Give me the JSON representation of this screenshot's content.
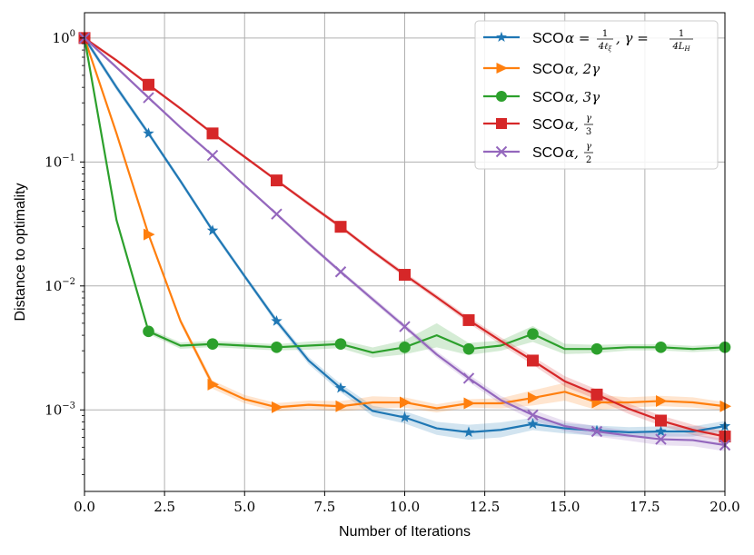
{
  "chart_data": {
    "type": "line",
    "xlabel": "Number of Iterations",
    "ylabel": "Distance to optimality",
    "yscale": "log",
    "xlim": [
      0,
      20
    ],
    "ylim": [
      0.00022,
      1.6
    ],
    "grid": true,
    "legend_position": "top-right",
    "x_ticks": [
      "0.0",
      "2.5",
      "5.0",
      "7.5",
      "10.0",
      "12.5",
      "15.0",
      "17.5",
      "20.0"
    ],
    "x_tick_values": [
      0,
      2.5,
      5,
      7.5,
      10,
      12.5,
      15,
      17.5,
      20
    ],
    "y_tick_values": [
      1,
      0.1,
      0.01,
      0.001
    ],
    "y_ticks": [
      {
        "base": "10",
        "exp": "0"
      },
      {
        "base": "10",
        "exp": "−1"
      },
      {
        "base": "10",
        "exp": "−2"
      },
      {
        "base": "10",
        "exp": "−3"
      }
    ],
    "x": [
      0,
      1,
      2,
      3,
      4,
      5,
      6,
      7,
      8,
      9,
      10,
      11,
      12,
      13,
      14,
      15,
      16,
      17,
      18,
      19,
      20
    ],
    "series": [
      {
        "name": "SCO α = 1/(4ℓξ), γ = 1/(4LH)",
        "legend_prefix": "SCO",
        "color": "#1f77b4",
        "marker": "star",
        "values": [
          1.0,
          0.4,
          0.17,
          0.07,
          0.028,
          0.012,
          0.0052,
          0.0025,
          0.0015,
          0.00098,
          0.00087,
          0.00071,
          0.00066,
          0.00069,
          0.00077,
          0.00071,
          0.00068,
          0.00066,
          0.00067,
          0.00067,
          0.00074
        ],
        "band": [
          0.06,
          0.06,
          0.05,
          0.05,
          0.05,
          0.05,
          0.06,
          0.07,
          0.08,
          0.1,
          0.12,
          0.13,
          0.15,
          0.15,
          0.12,
          0.1,
          0.1,
          0.1,
          0.1,
          0.1,
          0.1
        ]
      },
      {
        "name": "SCO α, 2γ",
        "legend_prefix": "SCO",
        "color": "#ff7f0e",
        "marker": "triangle-right",
        "values": [
          1.0,
          0.17,
          0.026,
          0.0052,
          0.0016,
          0.00122,
          0.00105,
          0.0011,
          0.00107,
          0.00115,
          0.00115,
          0.00103,
          0.00113,
          0.00113,
          0.00125,
          0.0014,
          0.00115,
          0.00115,
          0.00118,
          0.00115,
          0.00107
        ],
        "band": [
          0.05,
          0.05,
          0.05,
          0.06,
          0.08,
          0.08,
          0.08,
          0.08,
          0.1,
          0.12,
          0.1,
          0.08,
          0.08,
          0.1,
          0.15,
          0.18,
          0.15,
          0.1,
          0.1,
          0.1,
          0.08
        ]
      },
      {
        "name": "SCO α, 3γ",
        "legend_prefix": "SCO",
        "color": "#2ca02c",
        "marker": "circle",
        "values": [
          1.0,
          0.034,
          0.0043,
          0.0033,
          0.0034,
          0.0033,
          0.0032,
          0.0033,
          0.0034,
          0.0029,
          0.0032,
          0.004,
          0.0031,
          0.0033,
          0.0041,
          0.0031,
          0.0031,
          0.0032,
          0.0032,
          0.0031,
          0.0032
        ],
        "band": [
          0.05,
          0.05,
          0.05,
          0.06,
          0.06,
          0.06,
          0.06,
          0.08,
          0.08,
          0.1,
          0.14,
          0.25,
          0.12,
          0.1,
          0.16,
          0.1,
          0.08,
          0.06,
          0.06,
          0.06,
          0.06
        ]
      },
      {
        "name": "SCO α, γ/3",
        "legend_prefix": "SCO",
        "color": "#d62728",
        "marker": "square",
        "values": [
          1.0,
          0.66,
          0.42,
          0.27,
          0.17,
          0.11,
          0.071,
          0.046,
          0.03,
          0.019,
          0.0123,
          0.0081,
          0.0053,
          0.0036,
          0.0025,
          0.0017,
          0.00133,
          0.00102,
          0.00082,
          0.00069,
          0.00061
        ],
        "band": [
          0.03,
          0.03,
          0.03,
          0.03,
          0.03,
          0.03,
          0.03,
          0.04,
          0.04,
          0.04,
          0.05,
          0.05,
          0.06,
          0.07,
          0.08,
          0.1,
          0.1,
          0.1,
          0.1,
          0.1,
          0.1
        ]
      },
      {
        "name": "SCO α, γ/2",
        "legend_prefix": "SCO",
        "color": "#9467bd",
        "marker": "x",
        "values": [
          1.0,
          0.58,
          0.33,
          0.19,
          0.113,
          0.065,
          0.038,
          0.022,
          0.013,
          0.0078,
          0.0047,
          0.0028,
          0.0018,
          0.0012,
          0.00091,
          0.00074,
          0.00067,
          0.00062,
          0.00058,
          0.00057,
          0.00052
        ],
        "band": [
          0.03,
          0.03,
          0.03,
          0.03,
          0.03,
          0.03,
          0.03,
          0.04,
          0.04,
          0.05,
          0.05,
          0.06,
          0.07,
          0.08,
          0.1,
          0.1,
          0.1,
          0.1,
          0.12,
          0.12,
          0.12
        ]
      }
    ]
  }
}
